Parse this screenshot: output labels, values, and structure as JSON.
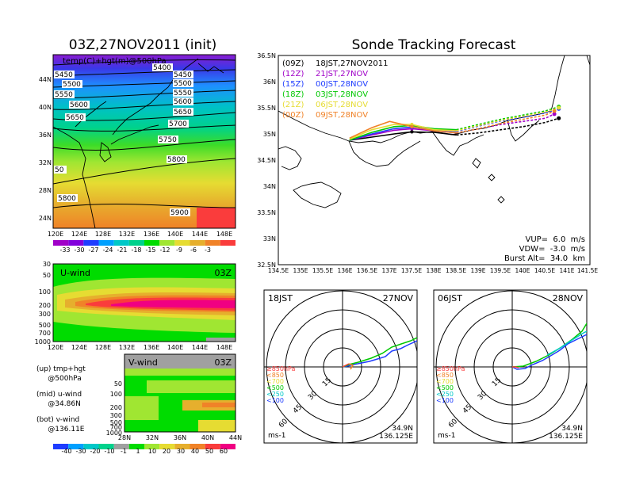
{
  "header": {
    "left_title": "03Z,27NOV2011 (init)",
    "right_title": "Sonde Tracking Forecast"
  },
  "colors": {
    "temp_scale": [
      "#a000c8",
      "#8200dc",
      "#1e3cff",
      "#00a0ff",
      "#00c8c8",
      "#00d28c",
      "#00dc00",
      "#a0e632",
      "#e6dc32",
      "#e6af2d",
      "#f08228",
      "#fa3c3c"
    ],
    "wind_scale": [
      "#1e3cff",
      "#00a0ff",
      "#00c8c8",
      "#00d28c",
      "#a0a0a0",
      "#00dc00",
      "#a0e632",
      "#e6dc32",
      "#e6af2d",
      "#f08228",
      "#fa3c3c",
      "#f00082"
    ],
    "track_09z": "#000000",
    "track_12z": "#a000c8",
    "track_15z": "#1e3cff",
    "track_18z": "#00c800",
    "track_21z": "#e6dc32",
    "track_00z": "#f08228"
  },
  "map500": {
    "label": "temp(C)+hgt(m)@500hPa",
    "x_ticks": [
      "120E",
      "124E",
      "128E",
      "132E",
      "136E",
      "140E",
      "144E",
      "148E"
    ],
    "y_ticks": [
      "44N",
      "40N",
      "36N",
      "32N",
      "28N",
      "24N"
    ],
    "contour_labels": [
      "5400",
      "5450",
      "5450",
      "5500",
      "5500",
      "5550",
      "5550",
      "5600",
      "5600",
      "5650",
      "5650",
      "5700",
      "5750",
      "5800",
      "5800",
      "50",
      "5900"
    ],
    "colorbar_labels": [
      "-33",
      "-30",
      "-27",
      "-24",
      "-21",
      "-18",
      "-15",
      "-12",
      "-9",
      "-6",
      "-3"
    ]
  },
  "uwind": {
    "label": "U-wind",
    "time": "03Z",
    "y_ticks": [
      "30",
      "50",
      "100",
      "200",
      "300",
      "500",
      "700",
      "1000"
    ],
    "x_ticks": [
      "120E",
      "124E",
      "128E",
      "132E",
      "136E",
      "140E",
      "144E",
      "148E"
    ]
  },
  "vwind": {
    "label": "V-wind",
    "time": "03Z",
    "y_ticks": [
      "200",
      "300",
      "500",
      "700",
      "1000"
    ],
    "y_ticks_top": [
      "50",
      "100"
    ],
    "x_ticks": [
      "28N",
      "32N",
      "36N",
      "40N",
      "44N"
    ],
    "colorbar_labels": [
      "-40",
      "-30",
      "-20",
      "-10",
      "-1",
      "1",
      "10",
      "20",
      "30",
      "40",
      "50",
      "60"
    ]
  },
  "notes": {
    "up": "(up) tmp+hgt",
    "up2": "     @500hPa",
    "mid": "(mid) u-wind",
    "mid2": "     @34.86N",
    "bot": "(bot) v-wind",
    "bot2": "     @136.11E"
  },
  "track_map": {
    "x_ticks": [
      "134.5E",
      "135E",
      "135.5E",
      "136E",
      "136.5E",
      "137E",
      "137.5E",
      "138E",
      "138.5E",
      "139E",
      "139.5E",
      "140E",
      "140.5E",
      "141E",
      "141.5E"
    ],
    "y_ticks": [
      "36.5N",
      "36N",
      "35.5N",
      "35N",
      "34.5N",
      "34N",
      "33.5N",
      "33N",
      "32.5N"
    ],
    "legend": [
      {
        "code": "(09Z)",
        "text": "18JST,27NOV2011",
        "color": "#000000"
      },
      {
        "code": "(12Z)",
        "text": "21JST,27NOV",
        "color": "#a000c8"
      },
      {
        "code": "(15Z)",
        "text": "00JST,28NOV",
        "color": "#1e3cff"
      },
      {
        "code": "(18Z)",
        "text": "03JST,28NOV",
        "color": "#00c800"
      },
      {
        "code": "(21Z)",
        "text": "06JST,28NOV",
        "color": "#e6dc32"
      },
      {
        "code": "(00Z)",
        "text": "09JST,28NOV",
        "color": "#f08228"
      }
    ],
    "params": [
      "VUP=  6.0  m/s",
      "VDW=  -3.0  m/s",
      "Burst Alt=  34.0  km"
    ]
  },
  "chart_data": [
    {
      "type": "line",
      "title": "Sonde Tracking Forecast",
      "xlabel": "",
      "ylabel": "",
      "xlim": [
        134.5,
        141.5
      ],
      "ylim": [
        32.5,
        36.5
      ],
      "series": [
        {
          "name": "(09Z) 18JST,27NOV2011",
          "x": [
            136.1,
            136.6,
            137.1,
            137.5,
            138.0,
            138.5,
            139.0,
            139.5,
            140.0,
            140.5,
            140.8
          ],
          "y": [
            34.88,
            34.94,
            35.0,
            35.04,
            35.03,
            34.98,
            35.02,
            35.08,
            35.14,
            35.22,
            35.3
          ]
        },
        {
          "name": "(12Z) 21JST,27NOV",
          "x": [
            136.1,
            136.6,
            137.1,
            137.5,
            138.0,
            138.5,
            139.0,
            139.5,
            140.0,
            140.5,
            140.7
          ],
          "y": [
            34.88,
            34.98,
            35.07,
            35.1,
            35.06,
            35.02,
            35.1,
            35.18,
            35.24,
            35.3,
            35.38
          ]
        },
        {
          "name": "(15Z) 00JST,28NOV",
          "x": [
            136.1,
            136.6,
            137.1,
            137.5,
            138.0,
            138.5,
            139.0,
            139.5,
            140.0,
            140.5,
            140.8
          ],
          "y": [
            34.88,
            35.0,
            35.1,
            35.13,
            35.08,
            35.05,
            35.15,
            35.25,
            35.32,
            35.4,
            35.48
          ]
        },
        {
          "name": "(18Z) 03JST,28NOV",
          "x": [
            136.1,
            136.6,
            137.1,
            137.5,
            138.0,
            138.5,
            139.0,
            139.5,
            140.0,
            140.5,
            140.8
          ],
          "y": [
            34.88,
            35.03,
            35.14,
            35.16,
            35.1,
            35.08,
            35.18,
            35.28,
            35.36,
            35.44,
            35.52
          ]
        },
        {
          "name": "(21Z) 06JST,28NOV",
          "x": [
            136.1,
            136.6,
            137.1,
            137.5,
            138.0,
            138.5,
            139.0,
            139.5,
            140.0,
            140.5,
            140.8
          ],
          "y": [
            34.9,
            35.08,
            35.18,
            35.18,
            35.08,
            35.06,
            35.16,
            35.26,
            35.34,
            35.42,
            35.5
          ]
        },
        {
          "name": "(00Z) 09JST,28NOV",
          "x": [
            136.1,
            136.6,
            137.0,
            137.5,
            138.0,
            138.5,
            139.0,
            139.5,
            140.0,
            140.5,
            140.7
          ],
          "y": [
            34.92,
            35.12,
            35.24,
            35.14,
            35.06,
            35.02,
            35.1,
            35.2,
            35.28,
            35.36,
            35.44
          ]
        }
      ]
    },
    {
      "type": "line",
      "title": "18JST 27NOV",
      "ring_labels": [
        "15",
        "30",
        "45",
        "60"
      ],
      "unit": "ms-1",
      "location": [
        "34.9N",
        "136.125E"
      ],
      "levels": [
        "≥850hPa",
        "<850",
        "<700",
        "<500",
        "<250",
        "<100"
      ]
    },
    {
      "type": "line",
      "title": "06JST 28NOV",
      "ring_labels": [
        "15",
        "30",
        "45",
        "60"
      ],
      "unit": "ms-1",
      "location": [
        "34.9N",
        "136.125E"
      ],
      "levels": [
        "≥850hPa",
        "<850",
        "<700",
        "<500",
        "<250",
        "<100"
      ]
    }
  ],
  "hodo1": {
    "time": "18JST",
    "date": "27NOV"
  },
  "hodo2": {
    "time": "06JST",
    "date": "28NOV"
  }
}
